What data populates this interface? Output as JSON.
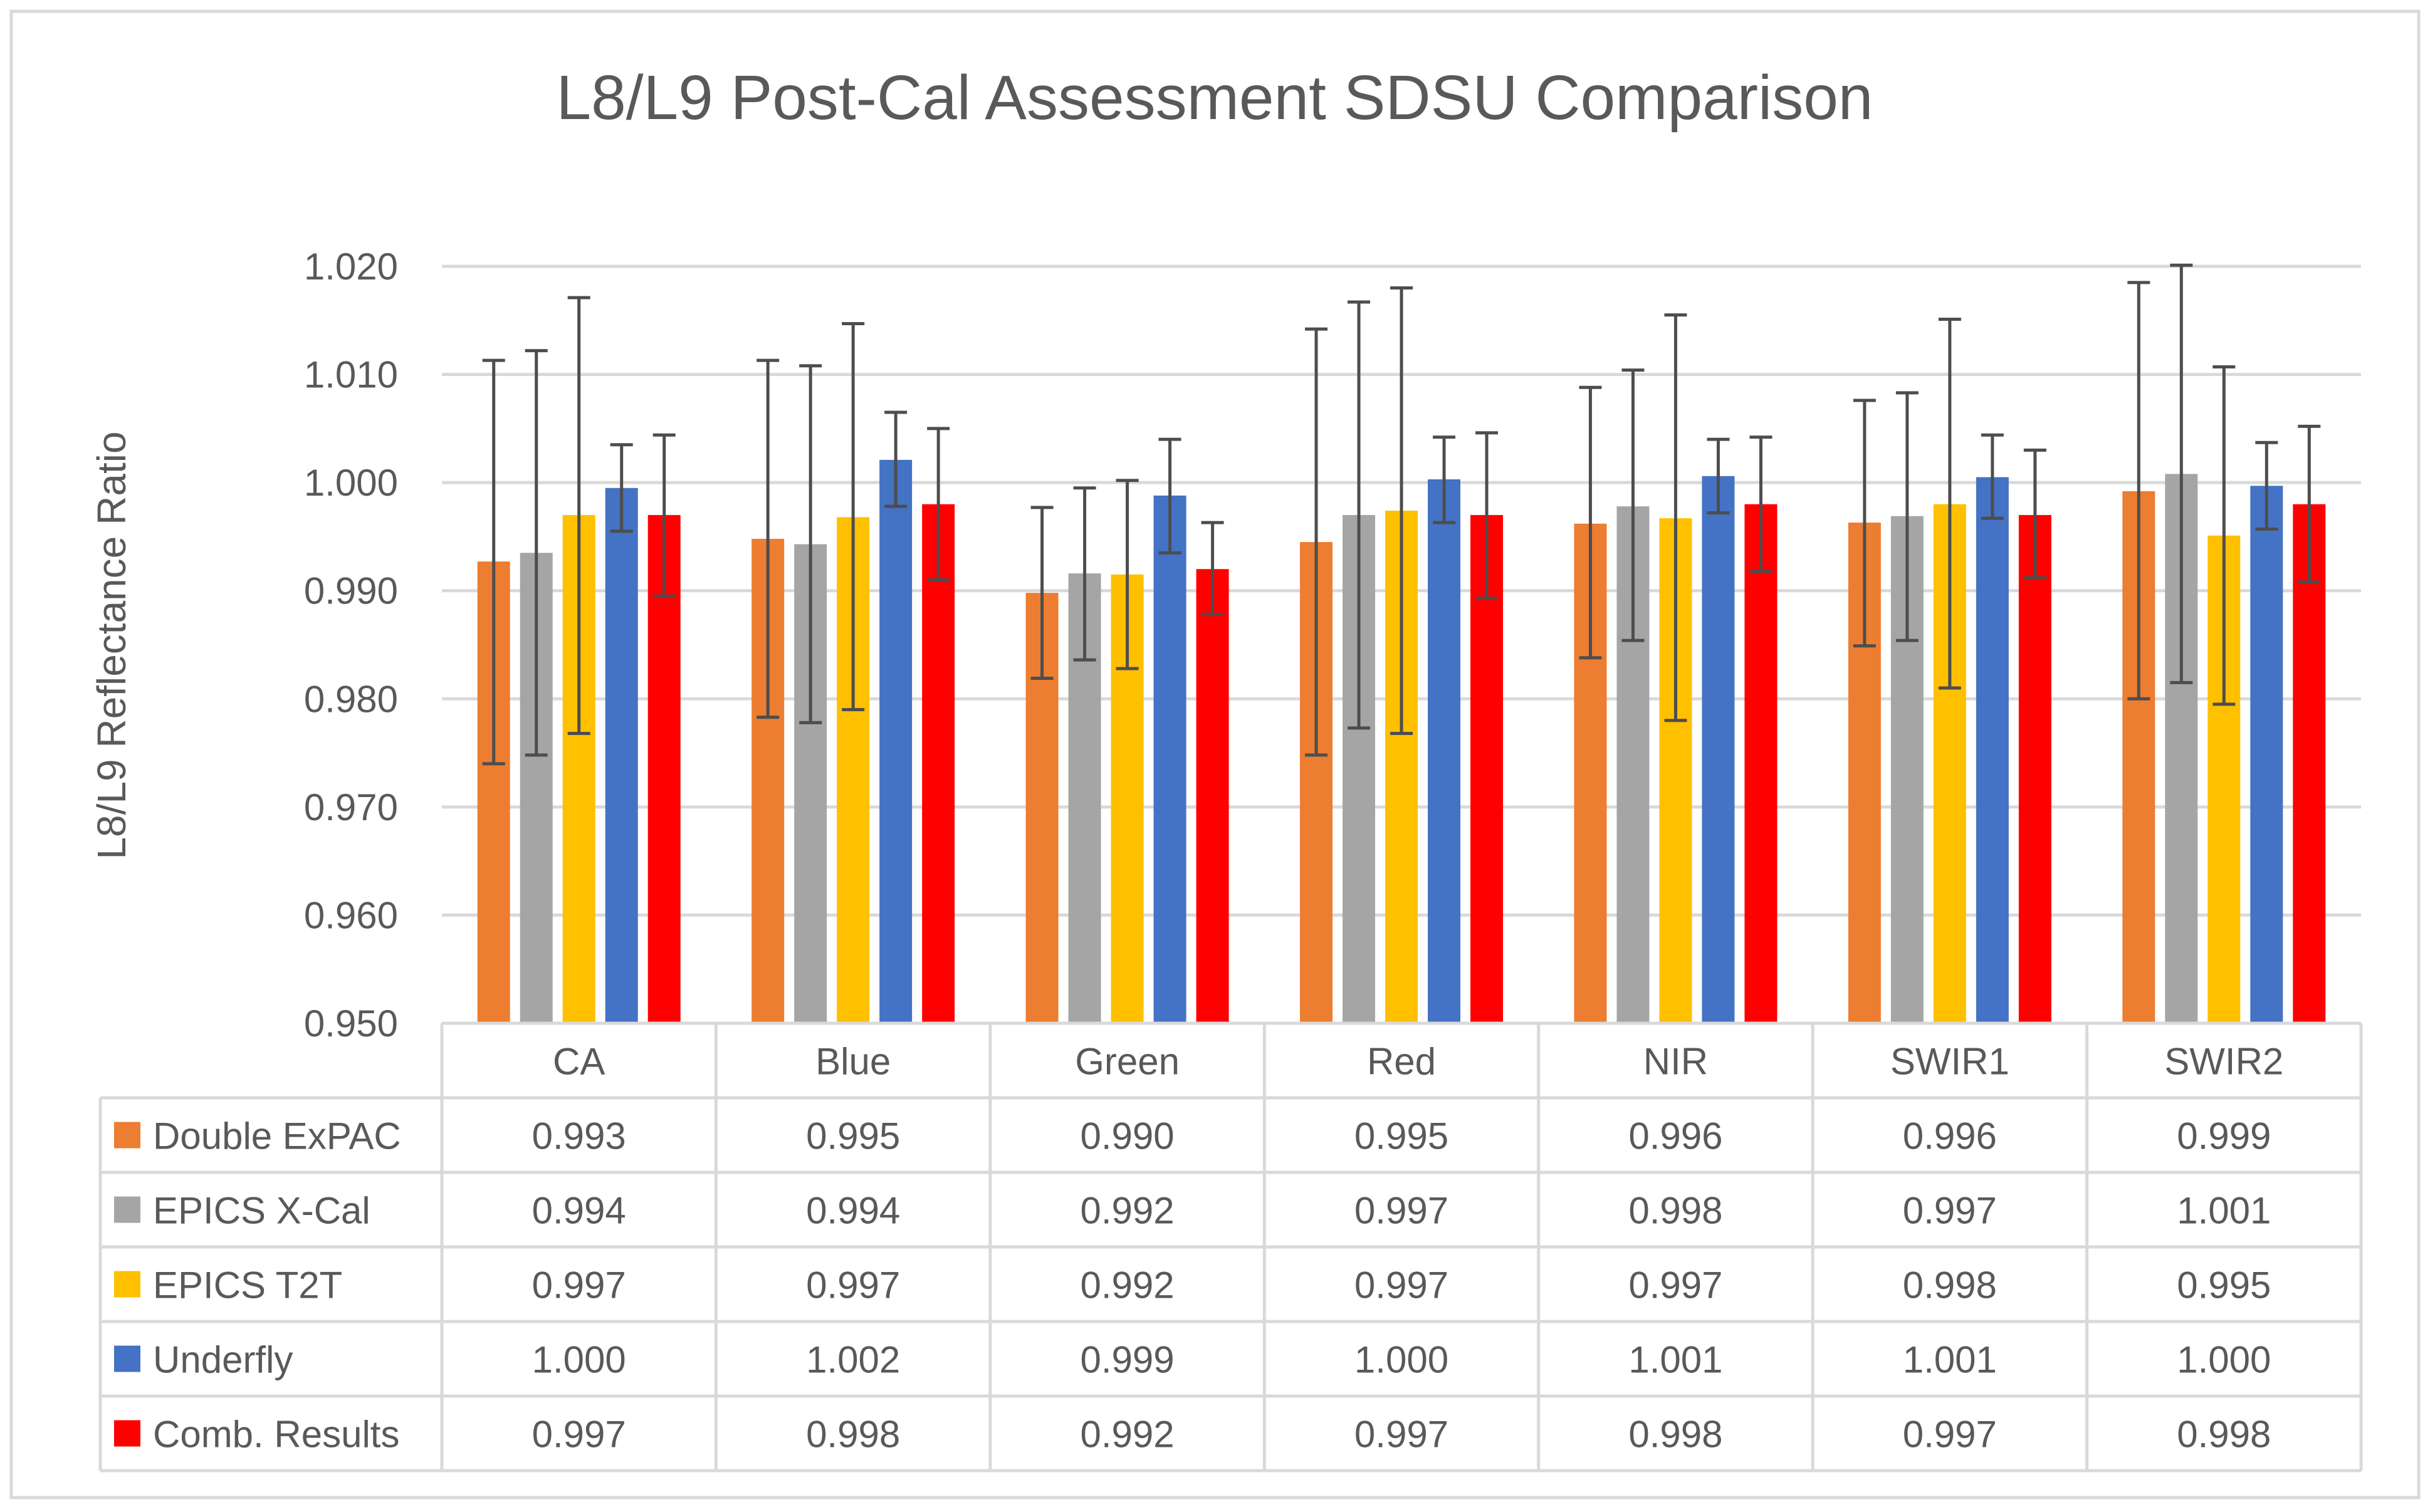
{
  "chart_data": {
    "type": "bar",
    "title": "L8/L9 Post-Cal Assessment SDSU Comparison",
    "xlabel": "",
    "ylabel": "L8/L9 Reflectance Ratio",
    "ylim": [
      0.95,
      1.02
    ],
    "yticks": [
      "0.950",
      "0.960",
      "0.970",
      "0.980",
      "0.990",
      "1.000",
      "1.010",
      "1.020"
    ],
    "grid": true,
    "legend": "data-table-below",
    "categories": [
      "CA",
      "Blue",
      "Green",
      "Red",
      "NIR",
      "SWIR1",
      "SWIR2"
    ],
    "series": [
      {
        "name": "Double ExPAC",
        "color": "#ED7D31",
        "values": [
          0.9927,
          0.9948,
          0.9898,
          0.9945,
          0.9962,
          0.9963,
          0.9992
        ],
        "labels": [
          "0.993",
          "0.995",
          "0.990",
          "0.995",
          "0.996",
          "0.996",
          "0.999"
        ],
        "err_low": [
          0.974,
          0.9783,
          0.9819,
          0.9748,
          0.9838,
          0.9849,
          0.98
        ],
        "err_high": [
          1.0113,
          1.0113,
          0.9977,
          1.0142,
          1.0088,
          1.0076,
          1.0185
        ]
      },
      {
        "name": "EPICS X-Cal",
        "color": "#A5A5A5",
        "values": [
          0.9935,
          0.9943,
          0.9916,
          0.997,
          0.9978,
          0.9969,
          1.0008
        ],
        "labels": [
          "0.994",
          "0.994",
          "0.992",
          "0.997",
          "0.998",
          "0.997",
          "1.001"
        ],
        "err_low": [
          0.9748,
          0.9778,
          0.9836,
          0.9773,
          0.9854,
          0.9854,
          0.9815
        ],
        "err_high": [
          1.0122,
          1.0108,
          0.9995,
          1.0167,
          1.0104,
          1.0083,
          1.0201
        ]
      },
      {
        "name": "EPICS T2T",
        "color": "#FFC000",
        "values": [
          0.997,
          0.9968,
          0.9915,
          0.9974,
          0.9967,
          0.998,
          0.9951
        ],
        "labels": [
          "0.997",
          "0.997",
          "0.992",
          "0.997",
          "0.997",
          "0.998",
          "0.995"
        ],
        "err_low": [
          0.9768,
          0.979,
          0.9828,
          0.9768,
          0.978,
          0.981,
          0.9795
        ],
        "err_high": [
          1.0171,
          1.0147,
          1.0002,
          1.018,
          1.0155,
          1.0151,
          1.0107
        ]
      },
      {
        "name": "Underfly",
        "color": "#4472C4",
        "values": [
          0.9995,
          1.0021,
          0.9988,
          1.0003,
          1.0006,
          1.0005,
          0.9997
        ],
        "labels": [
          "1.000",
          "1.002",
          "0.999",
          "1.000",
          "1.001",
          "1.001",
          "1.000"
        ],
        "err_low": [
          0.9955,
          0.9978,
          0.9935,
          0.9963,
          0.9972,
          0.9967,
          0.9957
        ],
        "err_high": [
          1.0035,
          1.0065,
          1.004,
          1.0042,
          1.004,
          1.0044,
          1.0037
        ]
      },
      {
        "name": "Comb. Results",
        "color": "#FF0000",
        "values": [
          0.997,
          0.998,
          0.992,
          0.997,
          0.998,
          0.997,
          0.998
        ],
        "labels": [
          "0.997",
          "0.998",
          "0.992",
          "0.997",
          "0.998",
          "0.997",
          "0.998"
        ],
        "err_low": [
          0.9895,
          0.991,
          0.9878,
          0.9893,
          0.9918,
          0.9912,
          0.9908
        ],
        "err_high": [
          1.0044,
          1.005,
          0.9963,
          1.0046,
          1.0042,
          1.003,
          1.0052
        ]
      }
    ]
  }
}
